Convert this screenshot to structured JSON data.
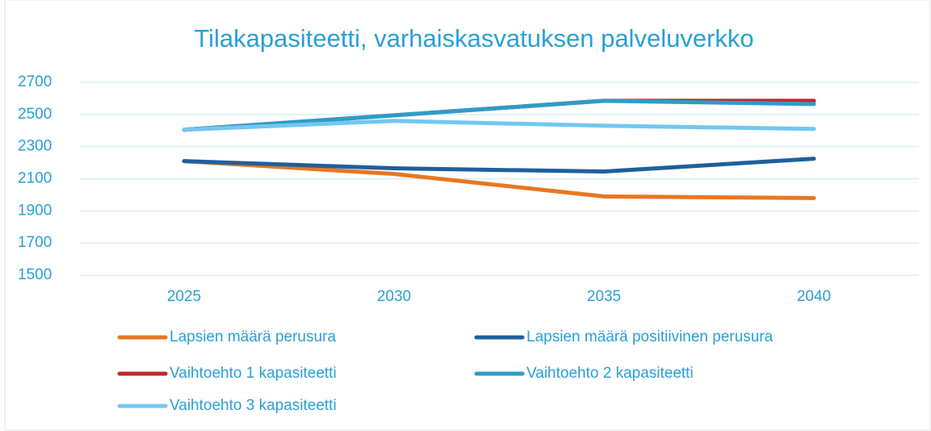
{
  "chart_data": {
    "type": "line",
    "title": "Tilakapasiteetti, varhaiskasvatuksen palveluverkko",
    "categories": [
      "2025",
      "2030",
      "2035",
      "2040"
    ],
    "series": [
      {
        "name": "Lapsien määrä perusura",
        "color": "#e87722",
        "values": [
          2210,
          2130,
          1990,
          1980
        ]
      },
      {
        "name": "Lapsien määrä positiivinen perusura",
        "color": "#1f5f9b",
        "values": [
          2210,
          2165,
          2145,
          2225
        ]
      },
      {
        "name": "Vaihtoehto 1 kapasiteetti",
        "color": "#c0272d",
        "values": [
          2405,
          2495,
          2585,
          2585
        ]
      },
      {
        "name": "Vaihtoehto 2 kapasiteetti",
        "color": "#2e9cc8",
        "values": [
          2405,
          2495,
          2585,
          2565
        ]
      },
      {
        "name": "Vaihtoehto 3 kapasiteetti",
        "color": "#72c7f0",
        "values": [
          2405,
          2460,
          2430,
          2410
        ]
      }
    ],
    "ylim": [
      1500,
      2700
    ],
    "yticks": [
      1500,
      1700,
      1900,
      2100,
      2300,
      2500,
      2700
    ],
    "grid": true,
    "legend": "bottom"
  }
}
